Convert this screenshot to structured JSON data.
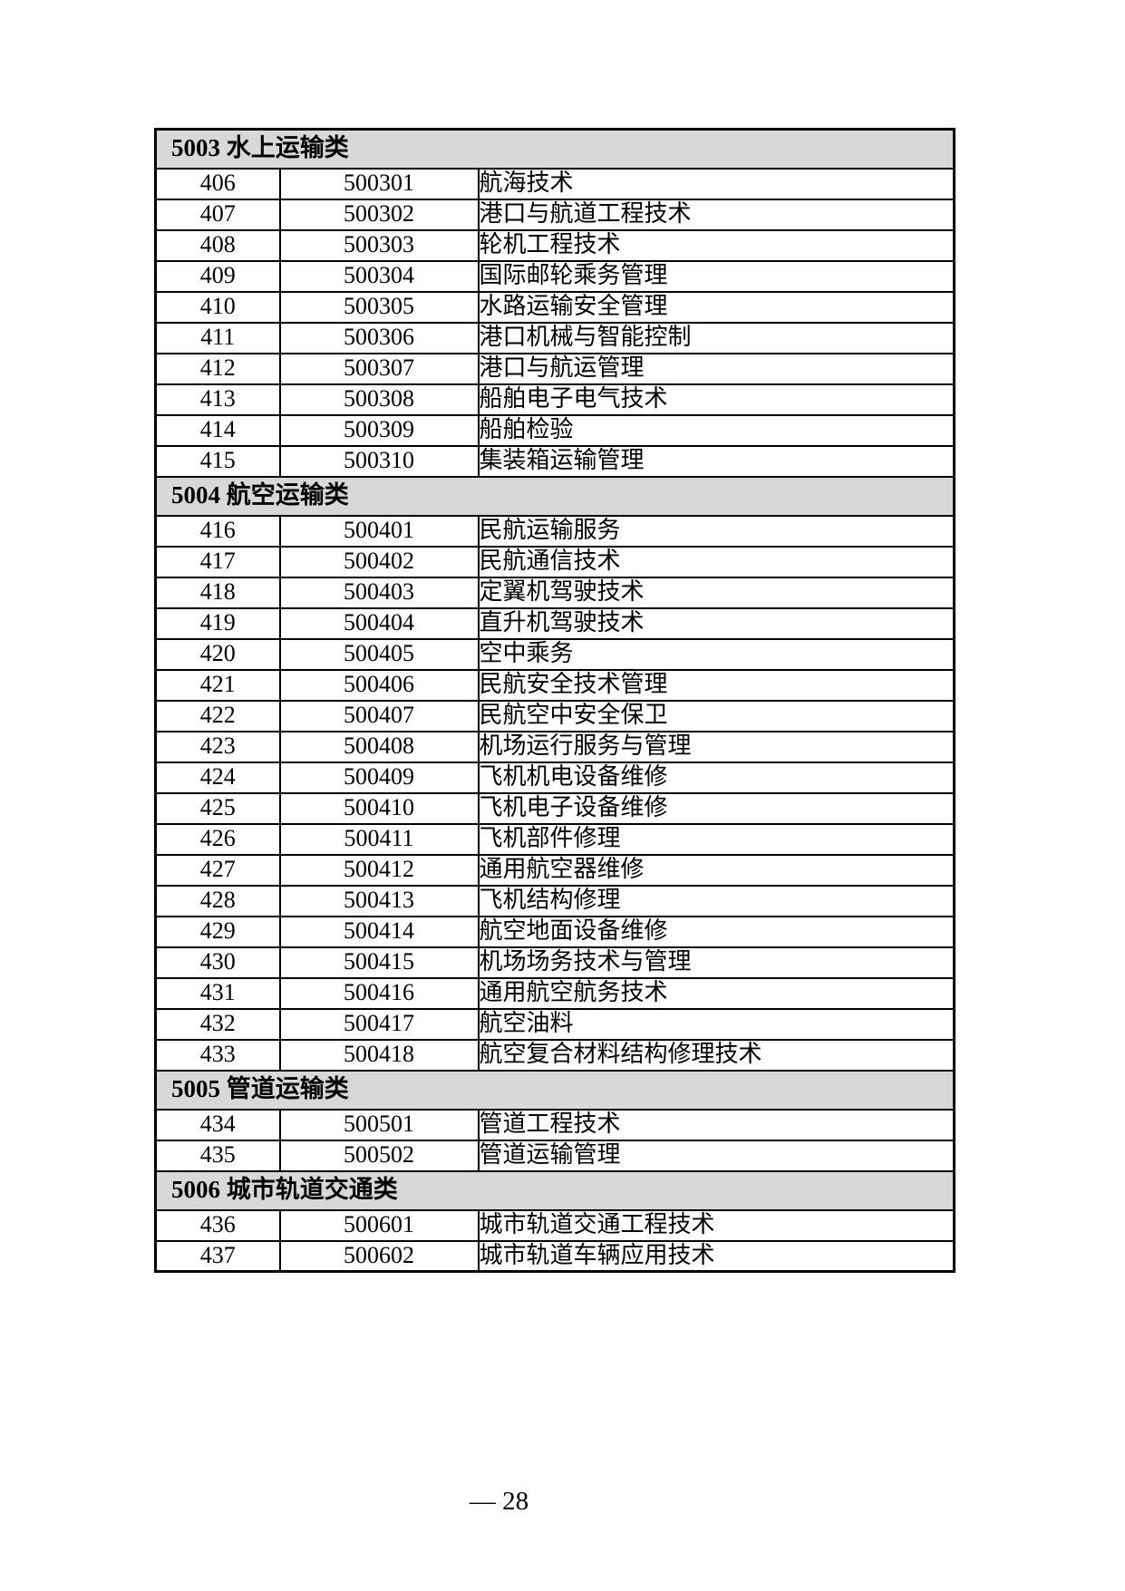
{
  "table": {
    "header_bg": "#d8d8d8",
    "border_color": "#000000",
    "columns": [
      "seq",
      "code",
      "name"
    ],
    "sections": [
      {
        "label": "5003 水上运输类",
        "rows": [
          [
            "406",
            "500301",
            "航海技术"
          ],
          [
            "407",
            "500302",
            "港口与航道工程技术"
          ],
          [
            "408",
            "500303",
            "轮机工程技术"
          ],
          [
            "409",
            "500304",
            "国际邮轮乘务管理"
          ],
          [
            "410",
            "500305",
            "水路运输安全管理"
          ],
          [
            "411",
            "500306",
            "港口机械与智能控制"
          ],
          [
            "412",
            "500307",
            "港口与航运管理"
          ],
          [
            "413",
            "500308",
            "船舶电子电气技术"
          ],
          [
            "414",
            "500309",
            "船舶检验"
          ],
          [
            "415",
            "500310",
            "集装箱运输管理"
          ]
        ]
      },
      {
        "label": "5004 航空运输类",
        "rows": [
          [
            "416",
            "500401",
            "民航运输服务"
          ],
          [
            "417",
            "500402",
            "民航通信技术"
          ],
          [
            "418",
            "500403",
            "定翼机驾驶技术"
          ],
          [
            "419",
            "500404",
            "直升机驾驶技术"
          ],
          [
            "420",
            "500405",
            "空中乘务"
          ],
          [
            "421",
            "500406",
            "民航安全技术管理"
          ],
          [
            "422",
            "500407",
            "民航空中安全保卫"
          ],
          [
            "423",
            "500408",
            "机场运行服务与管理"
          ],
          [
            "424",
            "500409",
            "飞机机电设备维修"
          ],
          [
            "425",
            "500410",
            "飞机电子设备维修"
          ],
          [
            "426",
            "500411",
            "飞机部件修理"
          ],
          [
            "427",
            "500412",
            "通用航空器维修"
          ],
          [
            "428",
            "500413",
            "飞机结构修理"
          ],
          [
            "429",
            "500414",
            "航空地面设备维修"
          ],
          [
            "430",
            "500415",
            "机场场务技术与管理"
          ],
          [
            "431",
            "500416",
            "通用航空航务技术"
          ],
          [
            "432",
            "500417",
            "航空油料"
          ],
          [
            "433",
            "500418",
            "航空复合材料结构修理技术"
          ]
        ]
      },
      {
        "label": "5005 管道运输类",
        "rows": [
          [
            "434",
            "500501",
            "管道工程技术"
          ],
          [
            "435",
            "500502",
            "管道运输管理"
          ]
        ]
      },
      {
        "label": "5006 城市轨道交通类",
        "rows": [
          [
            "436",
            "500601",
            "城市轨道交通工程技术"
          ],
          [
            "437",
            "500602",
            "城市轨道车辆应用技术"
          ]
        ]
      }
    ]
  },
  "footer": {
    "page_label": "— 28"
  }
}
